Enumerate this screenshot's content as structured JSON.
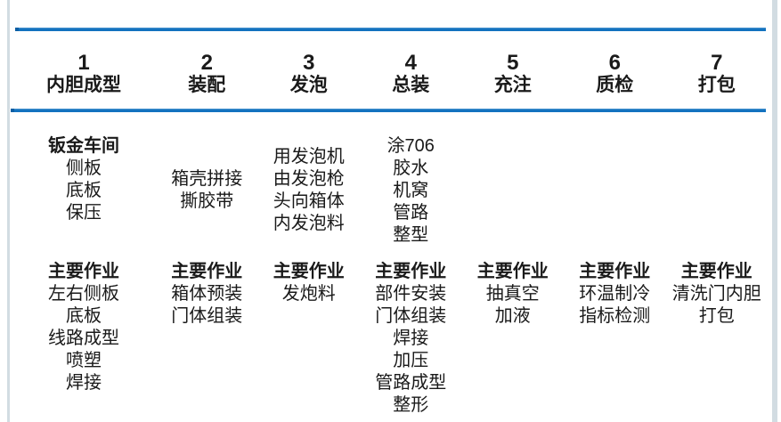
{
  "colors": {
    "accent_blue": "#1170bd",
    "edge_strip": "#d2dce2",
    "text": "#1a1a1a"
  },
  "process_table": {
    "columns": [
      {
        "number": "1",
        "name": "内胆成型",
        "section1_title": "钣金车间",
        "section1_items": [
          "侧板",
          "底板",
          "保压"
        ],
        "section2_title": "主要作业",
        "section2_items": [
          "左右侧板",
          "底板",
          "线路成型",
          "喷塑",
          "焊接"
        ]
      },
      {
        "number": "2",
        "name": "装配",
        "section1_items": [
          "箱壳拼接",
          "撕胶带"
        ],
        "section2_title": "主要作业",
        "section2_items": [
          "箱体预装",
          "门体组装"
        ]
      },
      {
        "number": "3",
        "name": "发泡",
        "section1_items": [
          "用发泡机",
          "由发泡枪",
          "头向箱体",
          "内发泡料"
        ],
        "section2_title": "主要作业",
        "section2_items": [
          "发炮料"
        ]
      },
      {
        "number": "4",
        "name": "总装",
        "section1_items": [
          "涂706",
          "胶水",
          "机窝",
          "管路",
          "整型"
        ],
        "section2_title": "主要作业",
        "section2_items": [
          "部件安装",
          "门体组装",
          "焊接",
          "加压",
          "管路成型",
          "整形"
        ]
      },
      {
        "number": "5",
        "name": "充注",
        "section1_items": [],
        "section2_title": "主要作业",
        "section2_items": [
          "抽真空",
          "加液"
        ]
      },
      {
        "number": "6",
        "name": "质检",
        "section1_items": [],
        "section2_title": "主要作业",
        "section2_items": [
          "环温制冷",
          "指标检测"
        ]
      },
      {
        "number": "7",
        "name": "打包",
        "section1_items": [],
        "section2_title": "主要作业",
        "section2_items": [
          "清洗门内胆",
          "打包"
        ]
      }
    ]
  }
}
